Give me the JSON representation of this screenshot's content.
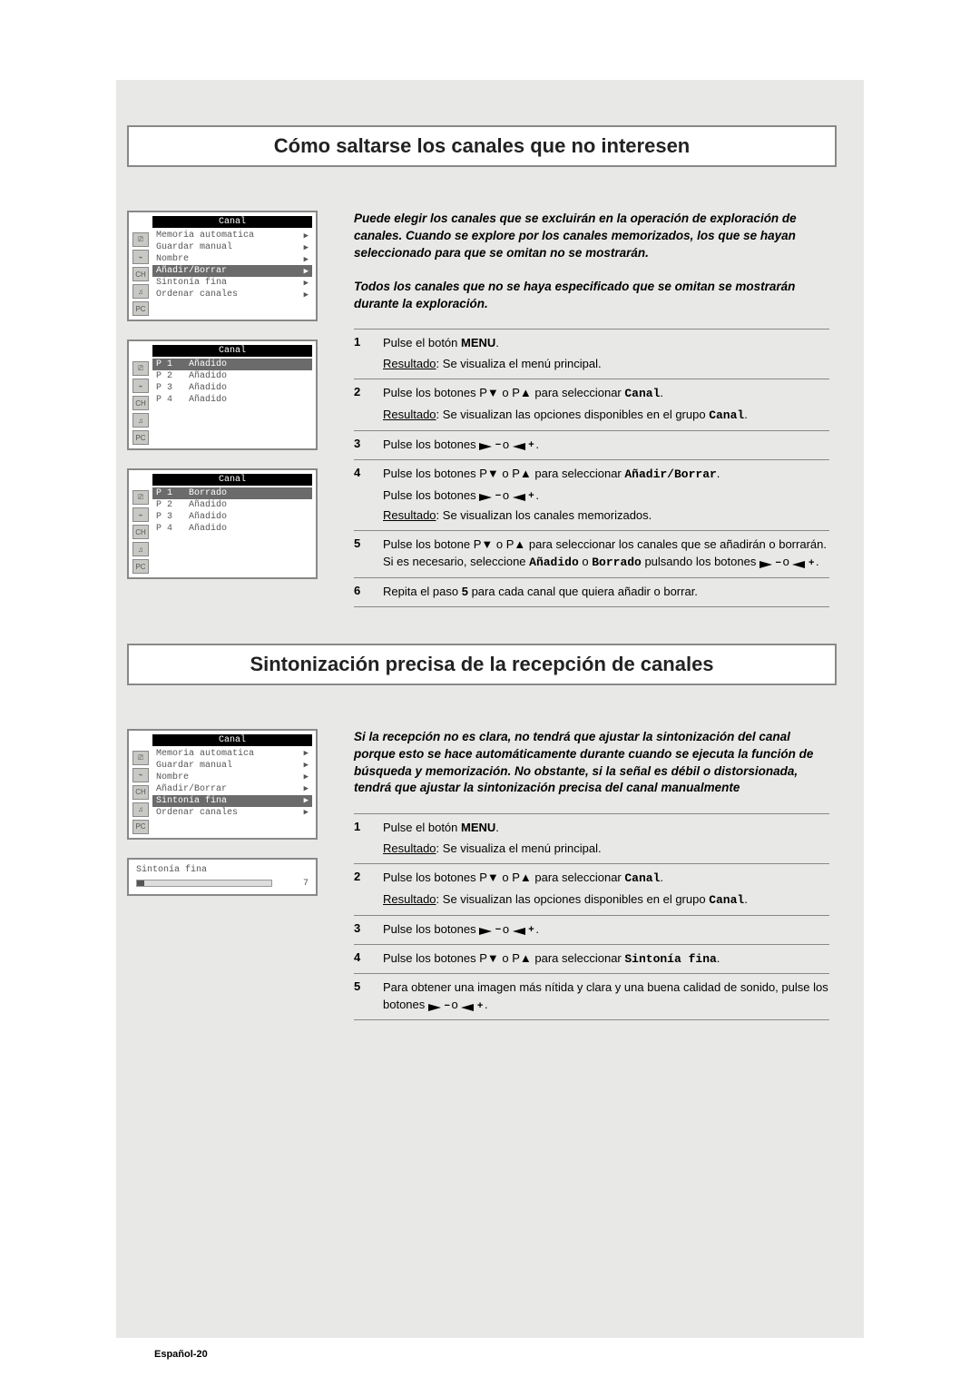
{
  "colors": {
    "page_bg": "#ffffff",
    "panel_bg": "#e8e9e6",
    "title_border": "#888888",
    "text": "#000000",
    "osd_sel_bg": "#6b6b6b",
    "osd_title_bg": "#000000",
    "osd_icon_bg": "#c8c8c4",
    "rule": "#888888"
  },
  "page_number": "Español-20",
  "section1": {
    "title": "Cómo saltarse los canales que no interesen",
    "intro1": "Puede elegir los canales que se excluirán en la operación de exploración de canales. Cuando se explore por los canales memorizados, los que se hayan seleccionado para que se omitan no se mostrarán.",
    "intro2": "Todos los canales que no se haya especificado que se omitan se mostrarán durante la exploración.",
    "menus": {
      "m1": {
        "title": "Canal",
        "icons": [
          "⎚",
          "⌁",
          "CH",
          "♫",
          "PC"
        ],
        "rows": [
          {
            "label": "Memoria automatica",
            "sel": false,
            "arrow": "▶"
          },
          {
            "label": "Guardar manual",
            "sel": false,
            "arrow": "▶"
          },
          {
            "label": "Nombre",
            "sel": false,
            "arrow": "▶"
          },
          {
            "label": "Añadir/Borrar",
            "sel": true,
            "arrow": "▶"
          },
          {
            "label": "Sintonía fina",
            "sel": false,
            "arrow": "▶"
          },
          {
            "label": "Ordenar canales",
            "sel": false,
            "arrow": "▶"
          }
        ]
      },
      "m2": {
        "title": "Canal",
        "icons": [
          "⎚",
          "⌁",
          "CH",
          "♫",
          "PC"
        ],
        "rows": [
          {
            "label": "P 1   Añadido",
            "sel": true,
            "arrow": ""
          },
          {
            "label": "P 2   Añadido",
            "sel": false,
            "arrow": ""
          },
          {
            "label": "P 3   Añadido",
            "sel": false,
            "arrow": ""
          },
          {
            "label": "P 4   Añadido",
            "sel": false,
            "arrow": ""
          }
        ]
      },
      "m3": {
        "title": "Canal",
        "icons": [
          "⎚",
          "⌁",
          "CH",
          "♫",
          "PC"
        ],
        "rows": [
          {
            "label": "P 1   Borrado",
            "sel": true,
            "arrow": ""
          },
          {
            "label": "P 2   Añadido",
            "sel": false,
            "arrow": ""
          },
          {
            "label": "P 3   Añadido",
            "sel": false,
            "arrow": ""
          },
          {
            "label": "P 4   Añadido",
            "sel": false,
            "arrow": ""
          }
        ]
      }
    },
    "steps": [
      {
        "n": "1",
        "lines": [
          {
            "t": "plain",
            "pre": "Pulse el botón ",
            "bold": "MENU",
            "post": "."
          },
          {
            "t": "result",
            "text": "Se visualiza el menú principal."
          }
        ]
      },
      {
        "n": "2",
        "lines": [
          {
            "t": "pbtn",
            "pre": "Pulse los botones P▼ o P▲ para seleccionar ",
            "mono": "Canal",
            "post": "."
          },
          {
            "t": "result_mono",
            "pre": "Se visualizan las opciones disponibles en el grupo ",
            "mono": "Canal",
            "post": "."
          }
        ]
      },
      {
        "n": "3",
        "lines": [
          {
            "t": "vol",
            "pre": "Pulse los botones ",
            "post": "."
          }
        ]
      },
      {
        "n": "4",
        "lines": [
          {
            "t": "pbtn",
            "pre": "Pulse los botones P▼ o P▲ para seleccionar ",
            "mono": "Añadir/Borrar",
            "post": "."
          },
          {
            "t": "vol",
            "pre": "Pulse los botones ",
            "post": "."
          },
          {
            "t": "result",
            "text": "Se visualizan los canales memorizados."
          }
        ]
      },
      {
        "n": "5",
        "lines": [
          {
            "t": "mixed",
            "html": "Pulse los botone P▼ o P▲ para seleccionar los canales que se añadirán o borrarán. Si es necesario, seleccione <span class='mono'>Añadido</span> o <span class='mono'>Borrado</span> pulsando los botones "
          },
          {
            "t": "volonly"
          }
        ]
      },
      {
        "n": "6",
        "lines": [
          {
            "t": "plain",
            "pre": "Repita el paso ",
            "bold": "5",
            "post": " para cada canal que quiera añadir o borrar."
          }
        ]
      }
    ]
  },
  "section2": {
    "title": "Sintonización precisa de la recepción de canales",
    "intro": "Si la recepción no es clara, no tendrá que ajustar la sintonización del canal porque esto se hace automáticamente durante cuando se ejecuta la función de búsqueda y memorización. No obstante, si la señal es débil o distorsionada, tendrá que ajustar la sintonización precisa del canal manualmente",
    "menus": {
      "m1": {
        "title": "Canal",
        "icons": [
          "⎚",
          "⌁",
          "CH",
          "♫",
          "PC"
        ],
        "rows": [
          {
            "label": "Memoria automatica",
            "sel": false,
            "arrow": "▶"
          },
          {
            "label": "Guardar manual",
            "sel": false,
            "arrow": "▶"
          },
          {
            "label": "Nombre",
            "sel": false,
            "arrow": "▶"
          },
          {
            "label": "Añadir/Borrar",
            "sel": false,
            "arrow": "▶"
          },
          {
            "label": "Sintonía fina",
            "sel": true,
            "arrow": "▶"
          },
          {
            "label": "Ordenar canales",
            "sel": false,
            "arrow": "▶"
          }
        ]
      },
      "slider": {
        "title": "Sintonía fina",
        "value": "7"
      }
    },
    "steps": [
      {
        "n": "1",
        "lines": [
          {
            "t": "plain",
            "pre": "Pulse el botón ",
            "bold": "MENU",
            "post": "."
          },
          {
            "t": "result",
            "text": "Se visualiza el menú principal."
          }
        ]
      },
      {
        "n": "2",
        "lines": [
          {
            "t": "pbtn",
            "pre": "Pulse los botones P▼ o P▲ para seleccionar ",
            "mono": "Canal",
            "post": "."
          },
          {
            "t": "result_mono",
            "pre": "Se visualizan las opciones disponibles en el grupo ",
            "mono": "Canal",
            "post": "."
          }
        ]
      },
      {
        "n": "3",
        "lines": [
          {
            "t": "vol",
            "pre": "Pulse los botones ",
            "post": "."
          }
        ]
      },
      {
        "n": "4",
        "lines": [
          {
            "t": "pbtn",
            "pre": "Pulse los botones P▼ o P▲ para seleccionar ",
            "mono": "Sintonía fina",
            "post": "."
          }
        ]
      },
      {
        "n": "5",
        "lines": [
          {
            "t": "mixed",
            "html": "Para obtener una imagen más nítida y clara y una buena calidad de sonido, pulse los botones "
          },
          {
            "t": "volonly"
          }
        ]
      }
    ]
  }
}
